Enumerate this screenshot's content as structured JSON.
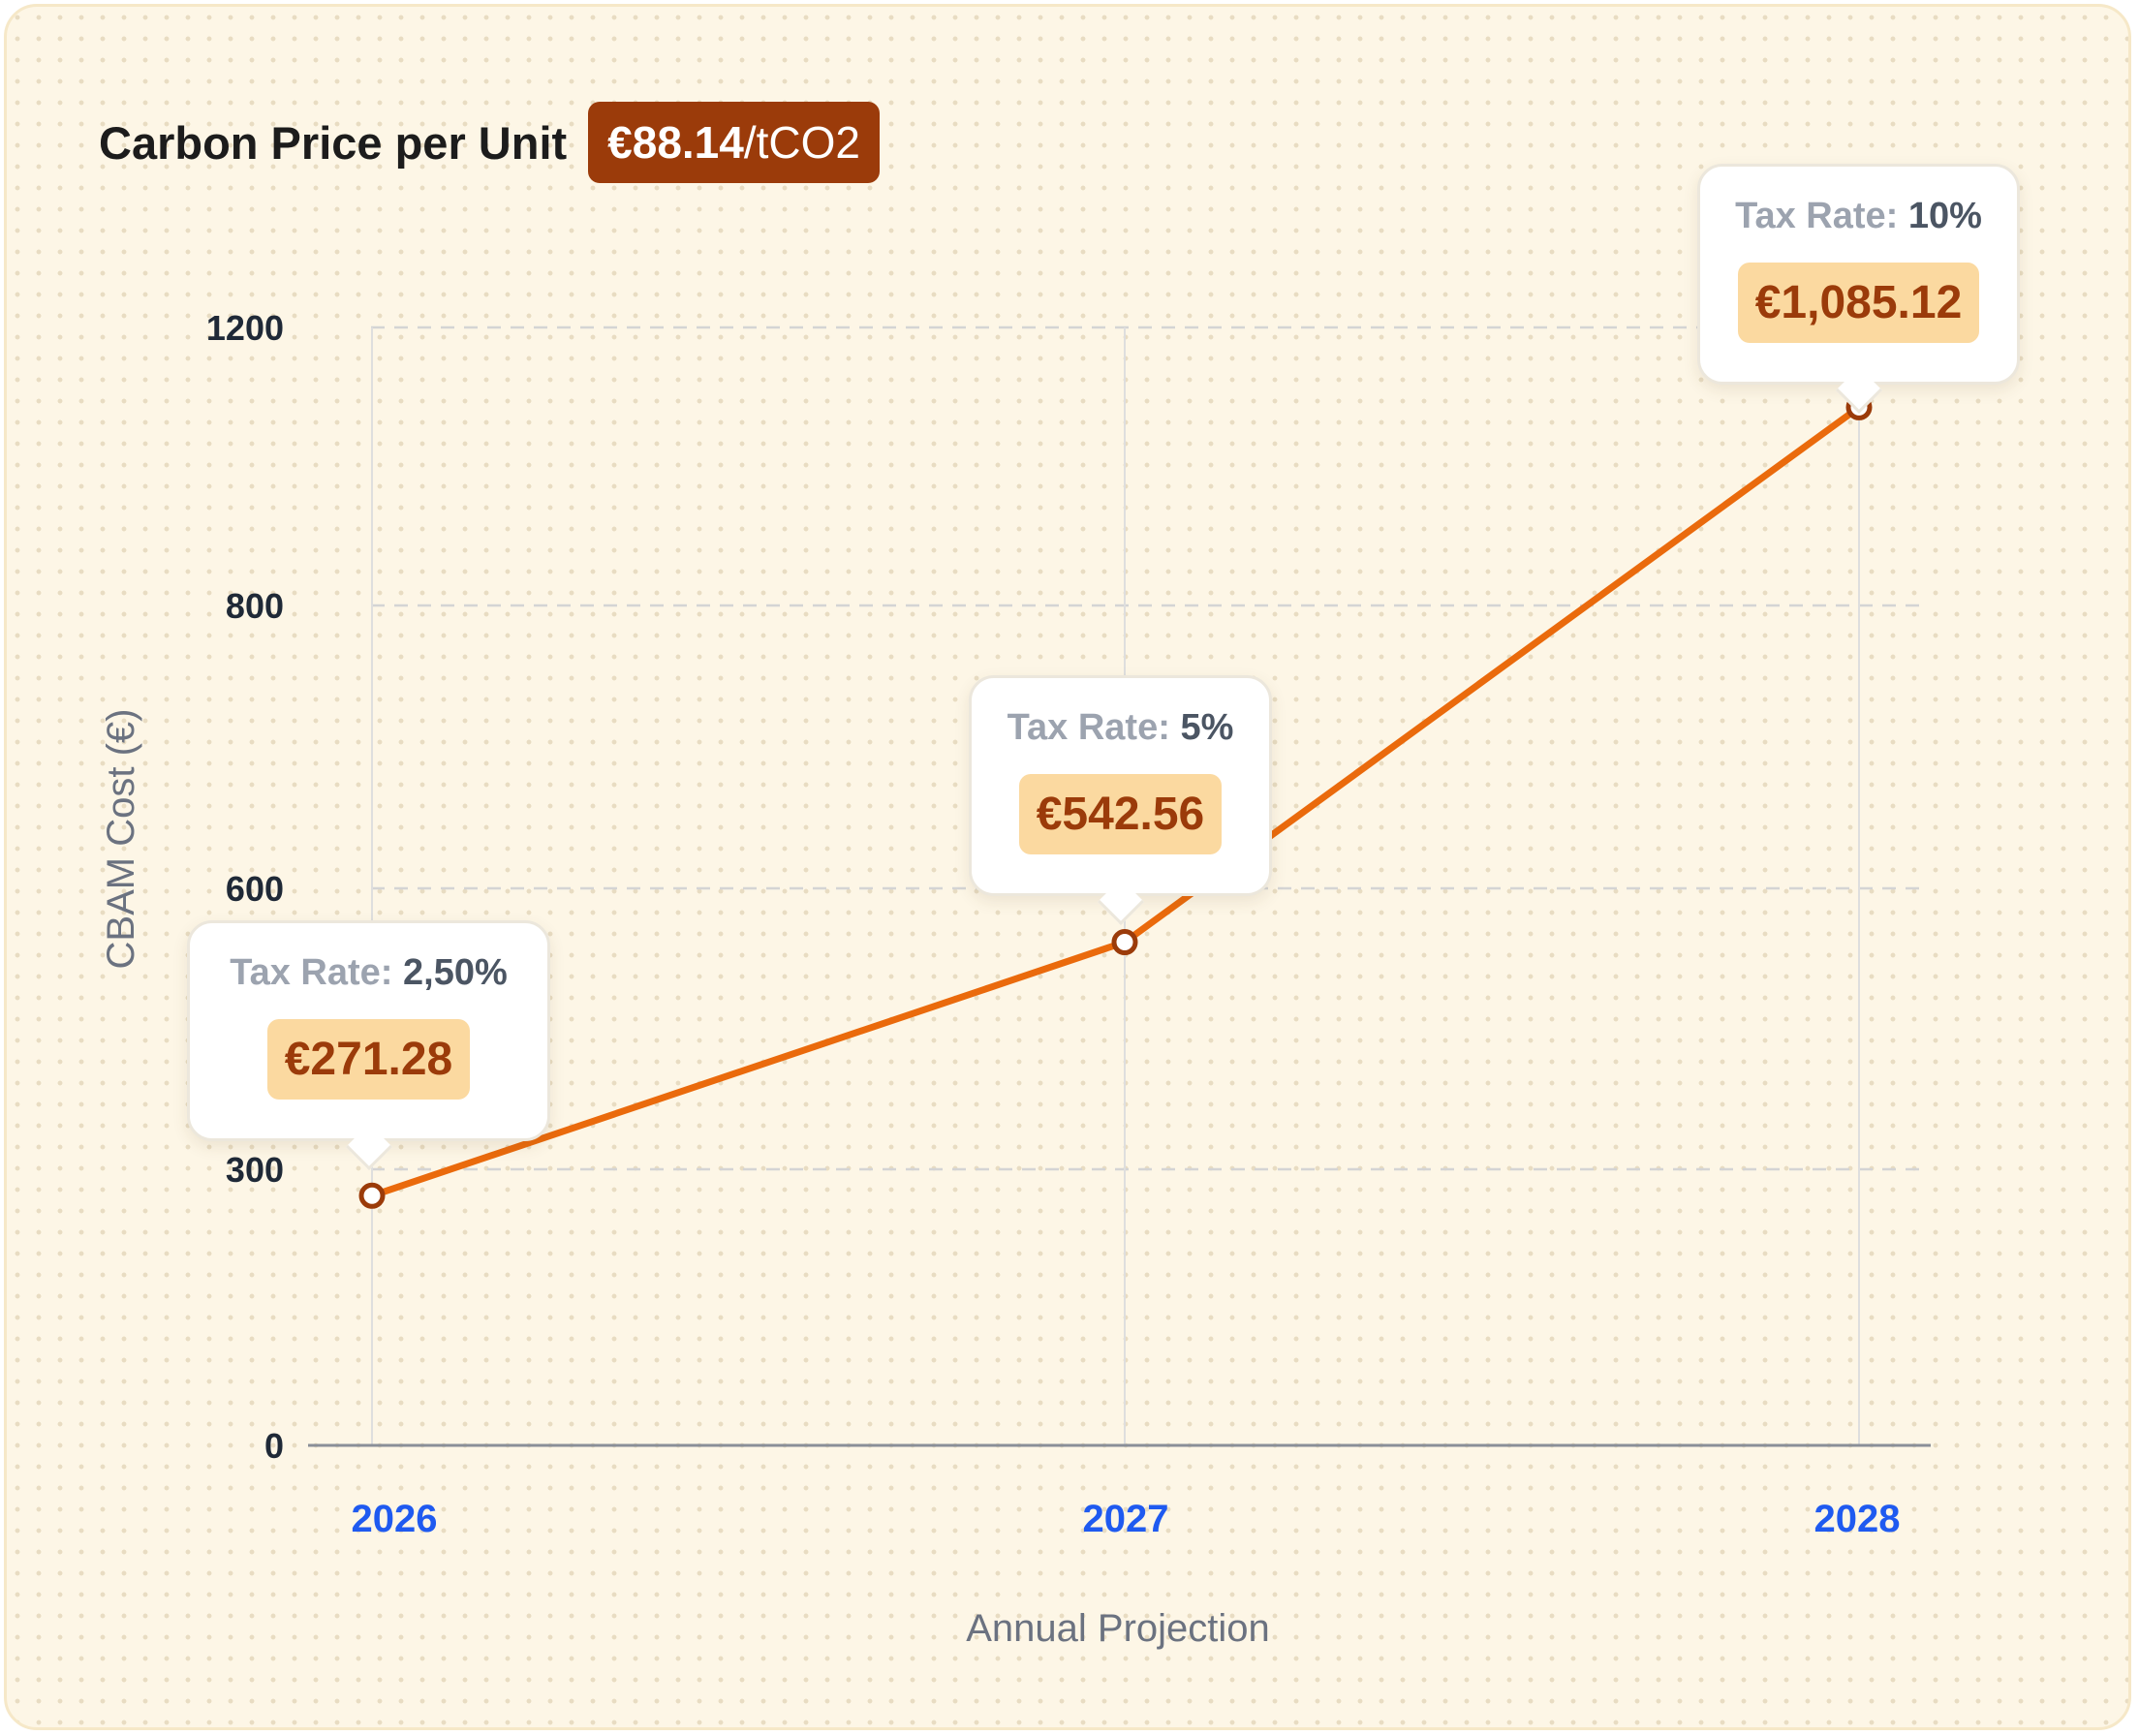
{
  "header": {
    "title": "Carbon Price per Unit",
    "price_value": "€88.14",
    "price_unit": "/tCO2"
  },
  "colors": {
    "line": "#ea6a0c",
    "marker_stroke": "#9b3b0a",
    "badge": "#9b3b0a",
    "tick_x": "#1f5af0"
  },
  "chart_data": {
    "type": "line",
    "x": [
      "2026",
      "2027",
      "2028"
    ],
    "series": [
      {
        "values": [
          271.28,
          542.56,
          1085.12
        ]
      }
    ],
    "yticks": [
      0,
      300,
      600,
      800,
      1200
    ],
    "ytick_labels": [
      "0",
      "300",
      "600",
      "800",
      "1200"
    ],
    "xlabel": "Annual Projection",
    "ylabel": "CBAM Cost (€)",
    "grid": true,
    "annotations": [
      {
        "x": "2026",
        "rate_label": "Tax Rate:",
        "rate_value": "2,50%",
        "amount": "€271.28"
      },
      {
        "x": "2027",
        "rate_label": "Tax Rate:",
        "rate_value": "5%",
        "amount": "€542.56"
      },
      {
        "x": "2028",
        "rate_label": "Tax Rate:",
        "rate_value": "10%",
        "amount": "€1,085.12"
      }
    ]
  }
}
